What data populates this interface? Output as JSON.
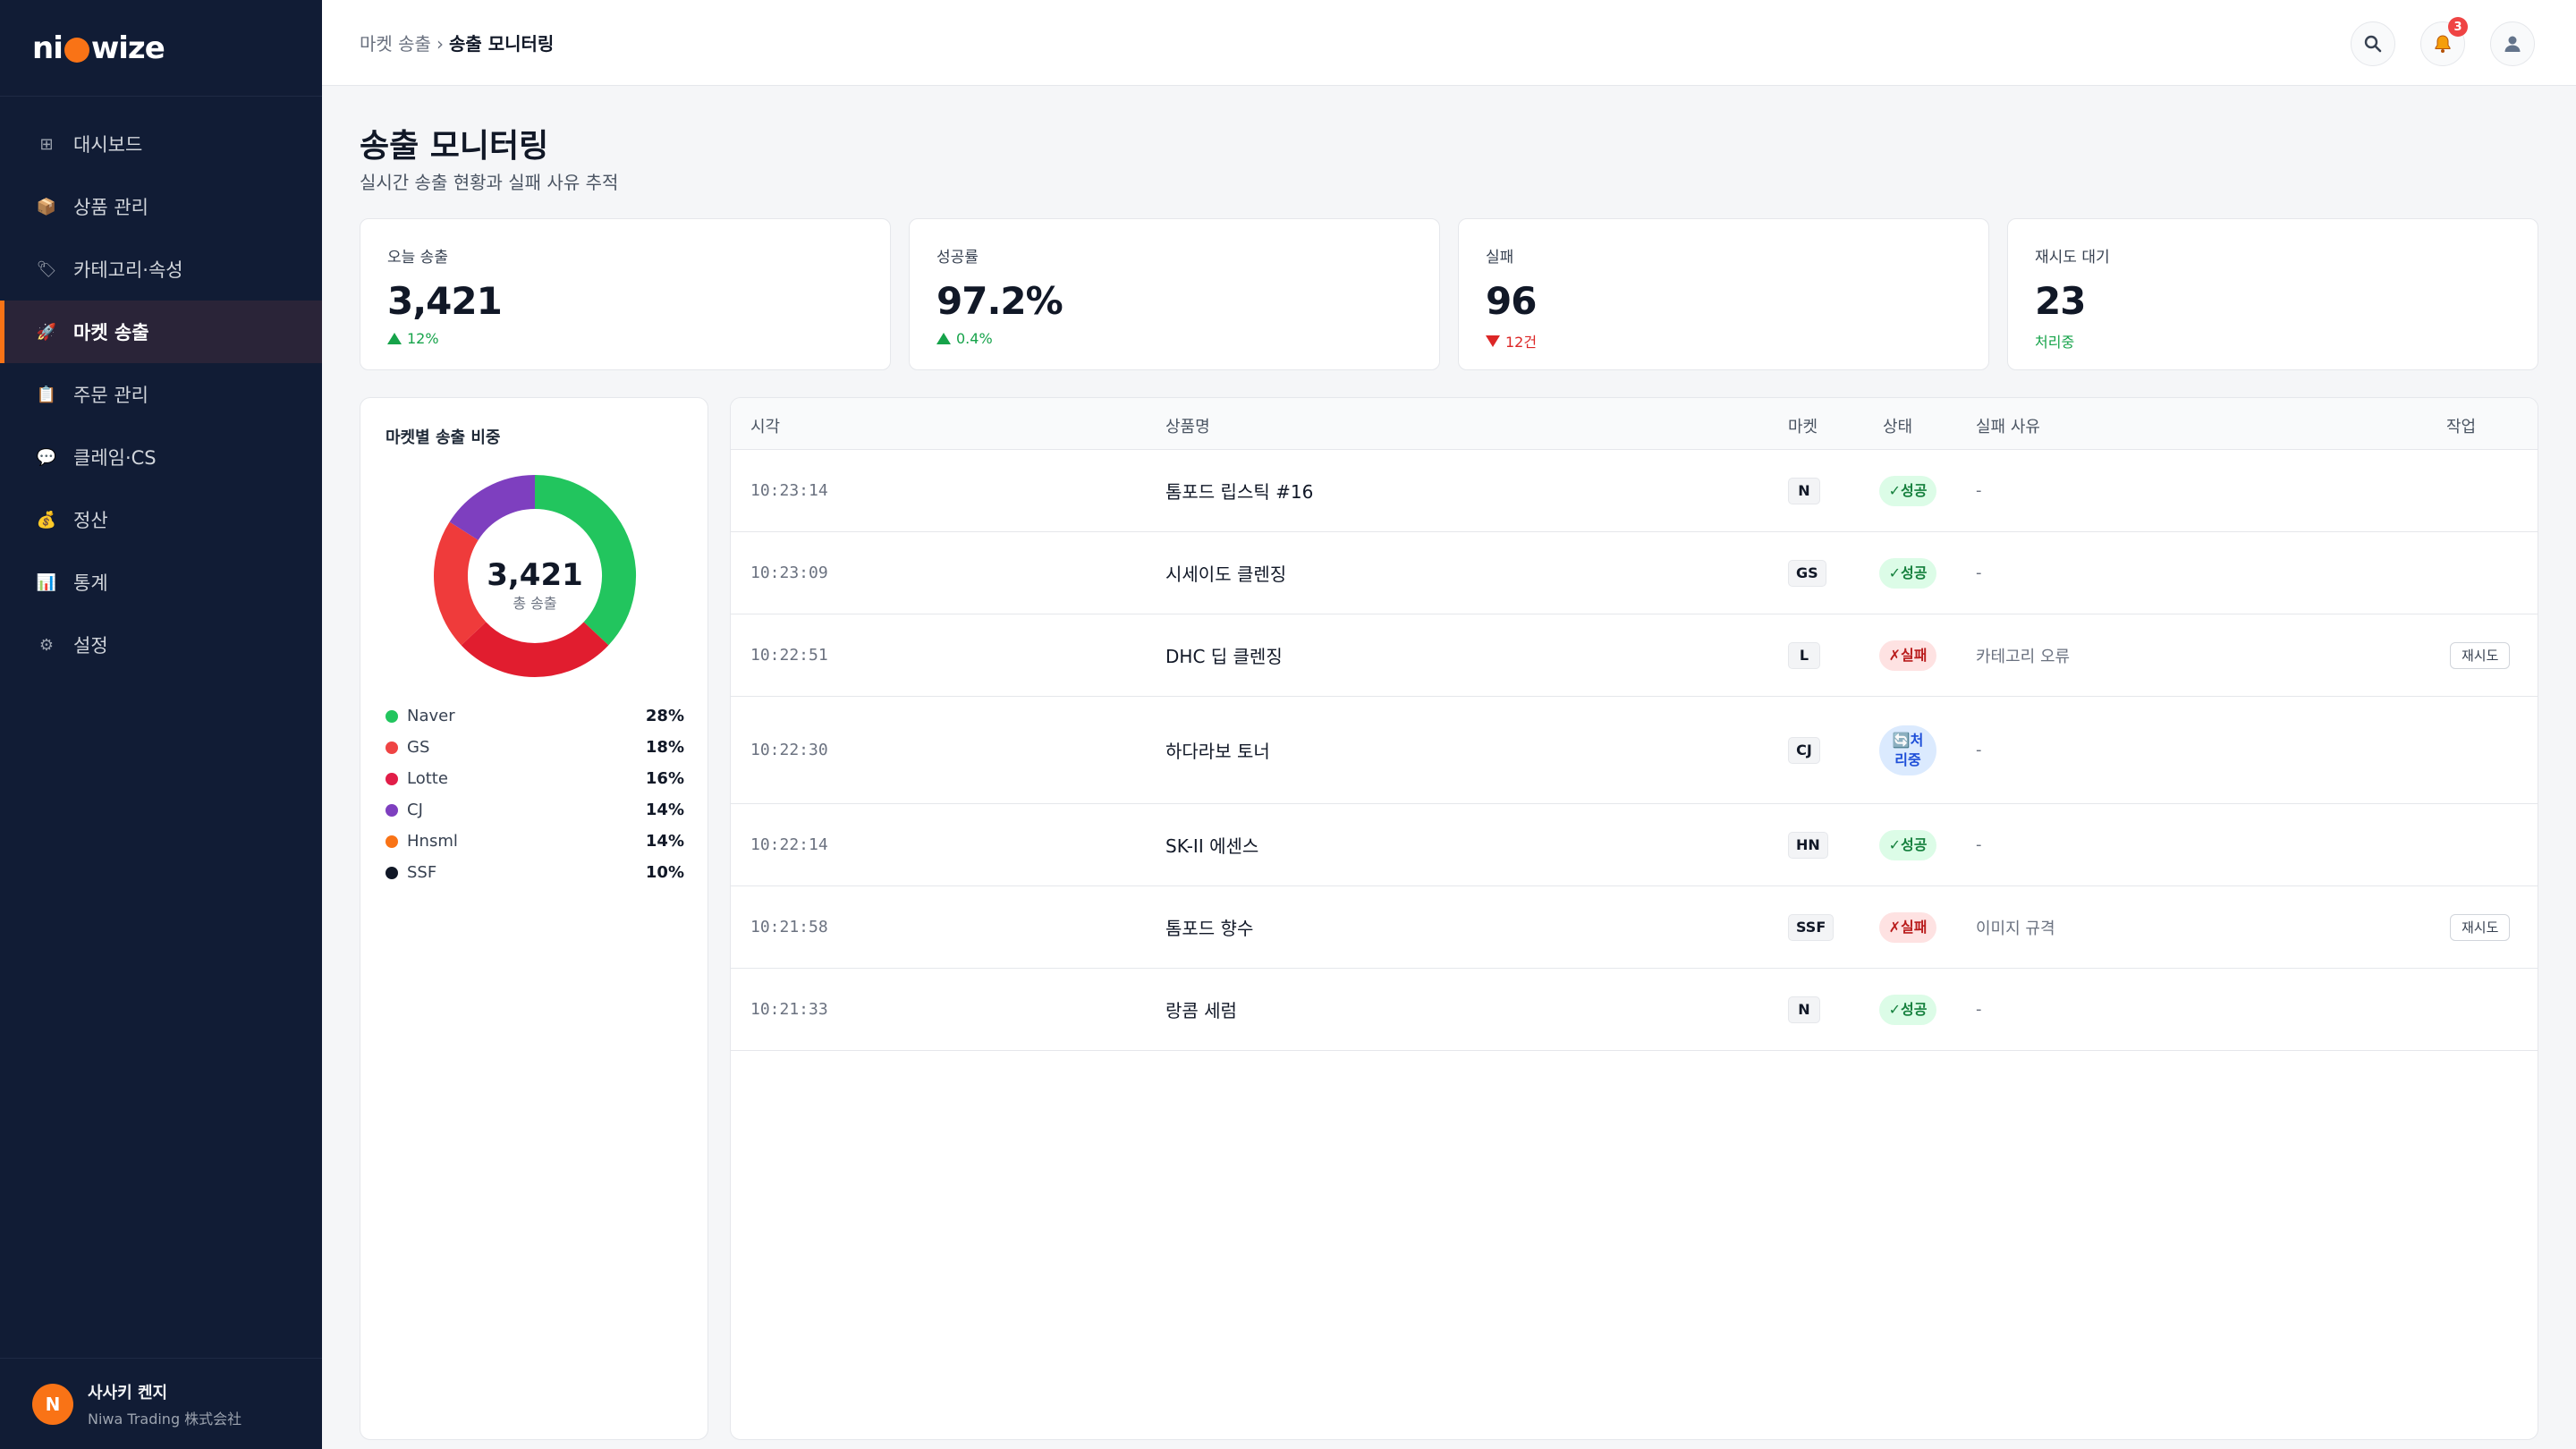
{
  "brand": {
    "part1": "ni",
    "part2": "wize"
  },
  "sidebar": {
    "items": [
      {
        "label": "대시보드",
        "icon": "grid-icon",
        "glyph": "⊞"
      },
      {
        "label": "상품 관리",
        "icon": "box-icon",
        "glyph": "📦"
      },
      {
        "label": "카테고리·속성",
        "icon": "tag-icon",
        "glyph": "🏷"
      },
      {
        "label": "마켓 송출",
        "icon": "rocket-icon",
        "glyph": "🚀"
      },
      {
        "label": "주문 관리",
        "icon": "clipboard-icon",
        "glyph": "📋"
      },
      {
        "label": "클레임·CS",
        "icon": "chat-icon",
        "glyph": "💬"
      },
      {
        "label": "정산",
        "icon": "money-bag-icon",
        "glyph": "💰"
      },
      {
        "label": "통계",
        "icon": "bar-chart-icon",
        "glyph": "📊"
      },
      {
        "label": "설정",
        "icon": "gear-icon",
        "glyph": "⚙"
      }
    ],
    "active_index": 3,
    "user": {
      "initial": "N",
      "name": "사사키 켄지",
      "company": "Niwa Trading 株式会社"
    }
  },
  "header": {
    "breadcrumb_parent": "마켓 송출",
    "breadcrumb_sep": "›",
    "breadcrumb_current": "송출 모니터링",
    "notification_count": "3"
  },
  "page": {
    "title": "송출 모니터링",
    "subtitle": "실시간 송출 현황과 실패 사유 추적"
  },
  "stats": [
    {
      "label": "오늘 송출",
      "value": "3,421",
      "delta": "12%",
      "trend": "up"
    },
    {
      "label": "성공률",
      "value": "97.2%",
      "delta": "0.4%",
      "trend": "up"
    },
    {
      "label": "실패",
      "value": "96",
      "delta": "12건",
      "trend": "down"
    },
    {
      "label": "재시도 대기",
      "value": "23",
      "delta": "처리중",
      "trend": "none"
    }
  ],
  "share": {
    "title": "마켓별 송출 비중",
    "center_value": "3,421",
    "center_label": "총 송출"
  },
  "chart_data": {
    "type": "pie",
    "categories": [
      "Naver",
      "GS",
      "Lotte",
      "CJ",
      "Hnsml",
      "SSF"
    ],
    "values": [
      28,
      18,
      16,
      14,
      14,
      10
    ],
    "value_labels": [
      "28%",
      "18%",
      "16%",
      "14%",
      "14%",
      "10%"
    ],
    "colors": [
      "#22c55e",
      "#ef4444",
      "#e11d48",
      "#7e3fbf",
      "#f97316",
      "#111827"
    ],
    "ring_colors": [
      "#22c55e",
      "#e11d2f",
      "#ef3b3b",
      "#7e3fbf"
    ],
    "ring_values": [
      37,
      26,
      21,
      16
    ],
    "legend_position": "bottom"
  },
  "table": {
    "headers": {
      "time": "시각",
      "name": "상품명",
      "market": "마켓",
      "status": "상태",
      "reason": "실패 사유",
      "action": "작업"
    },
    "rows": [
      {
        "time": "10:23:14",
        "name": "톰포드 립스틱 #16",
        "market": "N",
        "status": "✓성공",
        "kind": "ok",
        "reason": "-",
        "action": ""
      },
      {
        "time": "10:23:09",
        "name": "시세이도 클렌징",
        "market": "GS",
        "status": "✓성공",
        "kind": "ok",
        "reason": "-",
        "action": ""
      },
      {
        "time": "10:22:51",
        "name": "DHC 딥 클렌징",
        "market": "L",
        "status": "✗실패",
        "kind": "fail",
        "reason": "카테고리 오류",
        "action": "재시도"
      },
      {
        "time": "10:22:30",
        "name": "하다라보 토너",
        "market": "CJ",
        "status": "🔄처리중",
        "kind": "proc",
        "reason": "-",
        "action": ""
      },
      {
        "time": "10:22:14",
        "name": "SK-II 에센스",
        "market": "HN",
        "status": "✓성공",
        "kind": "ok",
        "reason": "-",
        "action": ""
      },
      {
        "time": "10:21:58",
        "name": "톰포드 향수",
        "market": "SSF",
        "status": "✗실패",
        "kind": "fail",
        "reason": "이미지 규격",
        "action": "재시도"
      },
      {
        "time": "10:21:33",
        "name": "랑콤 세럼",
        "market": "N",
        "status": "✓성공",
        "kind": "ok",
        "reason": "-",
        "action": ""
      }
    ]
  }
}
